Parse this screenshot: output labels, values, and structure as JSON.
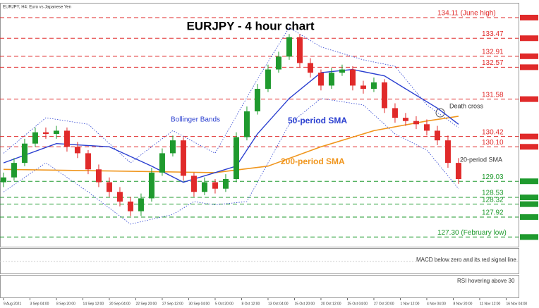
{
  "chart_data": {
    "type": "candlestick",
    "header": "EURJPY, H4: Euro vs Japanese Yen",
    "title": "EURJPY - 4 hour chart",
    "xlim": [
      -0.33,
      48.67
    ],
    "ylim": [
      127.0,
      134.35
    ],
    "xticks": [
      {
        "value": 0,
        "label": "9 Aug 2021"
      },
      {
        "value": 2.5,
        "label": "3 Sep 04:00"
      },
      {
        "value": 5,
        "label": "8 Sep 20:00"
      },
      {
        "value": 7.5,
        "label": "14 Sep 12:00"
      },
      {
        "value": 10,
        "label": "20 Sep 04:00"
      },
      {
        "value": 12.5,
        "label": "22 Sep 20:00"
      },
      {
        "value": 15,
        "label": "27 Sep 12:00"
      },
      {
        "value": 17.5,
        "label": "30 Sep 04:00"
      },
      {
        "value": 20,
        "label": "5 Oct 20:00"
      },
      {
        "value": 22.5,
        "label": "8 Oct 12:00"
      },
      {
        "value": 25,
        "label": "13 Oct 04:00"
      },
      {
        "value": 27.5,
        "label": "15 Oct 20:00"
      },
      {
        "value": 30,
        "label": "20 Oct 12:00"
      },
      {
        "value": 32.5,
        "label": "25 Oct 04:00"
      },
      {
        "value": 35,
        "label": "27 Oct 20:00"
      },
      {
        "value": 37.5,
        "label": "1 Nov 12:00"
      },
      {
        "value": 40,
        "label": "4 Nov 04:00"
      },
      {
        "value": 42.5,
        "label": "8 Nov 20:00"
      },
      {
        "value": 45,
        "label": "11 Nov 12:00"
      },
      {
        "value": 47.5,
        "label": "16 Nov 04:00"
      }
    ],
    "up_color": "#1f9a2e",
    "down_color": "#e02a2a",
    "candles": [
      [
        129.0,
        129.3,
        128.85,
        129.15
      ],
      [
        129.15,
        129.75,
        129.05,
        129.6
      ],
      [
        129.6,
        130.35,
        129.5,
        130.2
      ],
      [
        130.2,
        130.7,
        130.1,
        130.55
      ],
      [
        130.55,
        130.7,
        130.35,
        130.5
      ],
      [
        130.5,
        130.75,
        130.35,
        130.6
      ],
      [
        130.6,
        130.7,
        129.95,
        130.1
      ],
      [
        130.1,
        130.25,
        129.75,
        129.9
      ],
      [
        129.9,
        130.0,
        129.25,
        129.4
      ],
      [
        129.4,
        129.55,
        128.85,
        129.0
      ],
      [
        129.0,
        129.15,
        128.55,
        128.7
      ],
      [
        128.7,
        128.85,
        128.25,
        128.4
      ],
      [
        128.4,
        128.55,
        127.95,
        128.1
      ],
      [
        128.1,
        128.65,
        127.95,
        128.5
      ],
      [
        128.5,
        129.45,
        128.4,
        129.3
      ],
      [
        129.3,
        130.05,
        129.2,
        129.9
      ],
      [
        129.9,
        130.45,
        129.8,
        130.3
      ],
      [
        130.3,
        130.4,
        129.05,
        129.2
      ],
      [
        129.2,
        129.3,
        128.55,
        128.7
      ],
      [
        128.7,
        129.15,
        128.6,
        129.0
      ],
      [
        129.0,
        129.1,
        128.65,
        128.8
      ],
      [
        128.8,
        129.25,
        128.7,
        129.1
      ],
      [
        129.1,
        130.55,
        129.0,
        130.4
      ],
      [
        130.4,
        131.35,
        130.3,
        131.2
      ],
      [
        131.2,
        132.05,
        131.1,
        131.9
      ],
      [
        131.9,
        132.65,
        131.8,
        132.5
      ],
      [
        132.5,
        133.05,
        132.4,
        132.9
      ],
      [
        132.9,
        133.6,
        132.8,
        133.5
      ],
      [
        133.5,
        133.6,
        132.55,
        132.7
      ],
      [
        132.7,
        132.85,
        132.25,
        132.4
      ],
      [
        132.4,
        132.5,
        131.85,
        132.0
      ],
      [
        132.0,
        132.55,
        131.9,
        132.4
      ],
      [
        132.4,
        132.65,
        132.3,
        132.5
      ],
      [
        132.5,
        132.6,
        131.85,
        132.0
      ],
      [
        132.0,
        132.15,
        131.75,
        131.9
      ],
      [
        131.9,
        132.25,
        131.8,
        132.1
      ],
      [
        132.1,
        132.2,
        131.15,
        131.3
      ],
      [
        131.3,
        131.45,
        130.85,
        131.0
      ],
      [
        131.0,
        131.15,
        130.75,
        130.9
      ],
      [
        130.9,
        131.05,
        130.65,
        130.8
      ],
      [
        130.8,
        130.95,
        130.45,
        130.6
      ],
      [
        130.6,
        130.75,
        130.15,
        130.3
      ],
      [
        130.3,
        130.45,
        129.45,
        129.6
      ],
      [
        129.6,
        129.75,
        128.95,
        129.1
      ]
    ],
    "levels": [
      {
        "value": 134.11,
        "label": "134.11 (June high)",
        "color": "#e02a2a"
      },
      {
        "value": 133.47,
        "label": "133.47",
        "color": "#e02a2a"
      },
      {
        "value": 132.91,
        "label": "132.91",
        "color": "#e02a2a"
      },
      {
        "value": 132.57,
        "label": "132.57",
        "color": "#e02a2a"
      },
      {
        "value": 131.58,
        "label": "131.58",
        "color": "#e02a2a"
      },
      {
        "value": 130.42,
        "label": "130.42",
        "color": "#e02a2a"
      },
      {
        "value": 130.1,
        "label": "130.10",
        "color": "#e02a2a"
      },
      {
        "value": 129.03,
        "label": "129.03",
        "color": "#1f9a2e"
      },
      {
        "value": 128.53,
        "label": "128.53",
        "color": "#1f9a2e"
      },
      {
        "value": 128.32,
        "label": "128.32",
        "color": "#1f9a2e"
      },
      {
        "value": 127.92,
        "label": "127.92",
        "color": "#1f9a2e"
      },
      {
        "value": 127.3,
        "label": "127.30 (February low)",
        "color": "#1f9a2e"
      }
    ],
    "sma50": {
      "name": "50-period SMA",
      "color": "#2a3fd0",
      "x": [
        0,
        5,
        10,
        14,
        17,
        20,
        22,
        24,
        27,
        30,
        33,
        36,
        38,
        41,
        43
      ],
      "values": [
        129.6,
        130.2,
        130.1,
        129.5,
        129.0,
        129.3,
        129.5,
        130.5,
        131.6,
        132.4,
        132.5,
        132.3,
        131.9,
        131.3,
        130.8
      ]
    },
    "sma200": {
      "name": "200-period SMA",
      "color": "#f0961e",
      "x": [
        0,
        10,
        20,
        25,
        30,
        35,
        40,
        43
      ],
      "values": [
        129.4,
        129.35,
        129.3,
        129.5,
        130.1,
        130.6,
        130.9,
        131.05
      ]
    },
    "bollinger": {
      "name": "Bollinger Bands",
      "color": "#2a3fd0",
      "upper": {
        "x": [
          0,
          4,
          8,
          12,
          16,
          20,
          24,
          27,
          30,
          34,
          37,
          40,
          43
        ],
        "values": [
          129.9,
          131.0,
          130.8,
          129.6,
          130.6,
          129.9,
          132.2,
          133.8,
          133.2,
          132.8,
          132.6,
          131.4,
          130.7
        ]
      },
      "lower": {
        "x": [
          0,
          4,
          8,
          12,
          16,
          18,
          20,
          23,
          27,
          30,
          34,
          37,
          40,
          43
        ],
        "values": [
          128.7,
          129.6,
          128.7,
          127.7,
          128.0,
          128.4,
          128.3,
          128.4,
          130.8,
          131.6,
          131.4,
          130.5,
          130.0,
          128.8
        ]
      }
    },
    "annotations": {
      "death_cross": "Death cross",
      "sma20": "20-period SMA",
      "macd": "MACD below zero and its red signal line",
      "rsi": "RSI hovering above 30"
    }
  }
}
